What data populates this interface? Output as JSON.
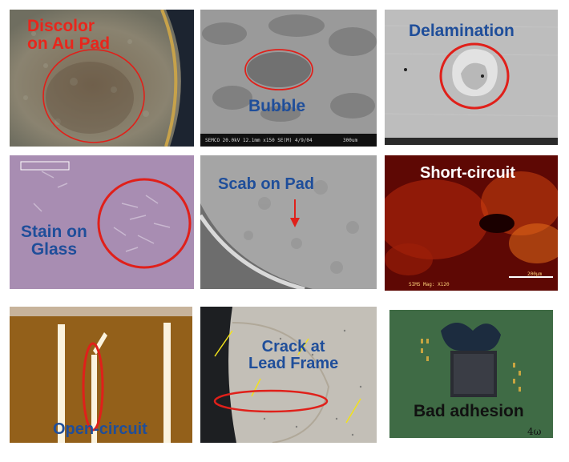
{
  "tiles": [
    {
      "id": "discolor",
      "label_line1": "Discolor",
      "label_line2": "on Au Pad",
      "label_color": "#e8261c"
    },
    {
      "id": "bubble",
      "label": "Bubble",
      "label_color": "#1f4e9a",
      "sem_footer": "SEMCO 20.0kV 12.1mm x150 SE(M) 4/9/04",
      "sem_scale": "300um"
    },
    {
      "id": "delamination",
      "label": "Delamination",
      "label_color": "#1f4e9a"
    },
    {
      "id": "stain",
      "label_line1": "Stain on",
      "label_line2": "Glass",
      "label_color": "#1f4e9a"
    },
    {
      "id": "scab",
      "label": "Scab on Pad",
      "label_color": "#1f4e9a"
    },
    {
      "id": "short",
      "label": "Short-circuit",
      "label_color": "#ffffff",
      "scale_text": "200µm",
      "footer_text": "SIMS Mag: X120"
    },
    {
      "id": "open",
      "label": "Open-circuit",
      "label_color": "#1f4e9a"
    },
    {
      "id": "crack",
      "label_line1": "Crack at",
      "label_line2": "Lead Frame",
      "label_color": "#1f4e9a"
    },
    {
      "id": "adhesion",
      "label": "Bad adhesion",
      "label_color": "#111111",
      "handwriting": "4ω"
    }
  ],
  "colors": {
    "marker_red": "#e0201a",
    "arrow_yellow": "#f2e21a"
  }
}
